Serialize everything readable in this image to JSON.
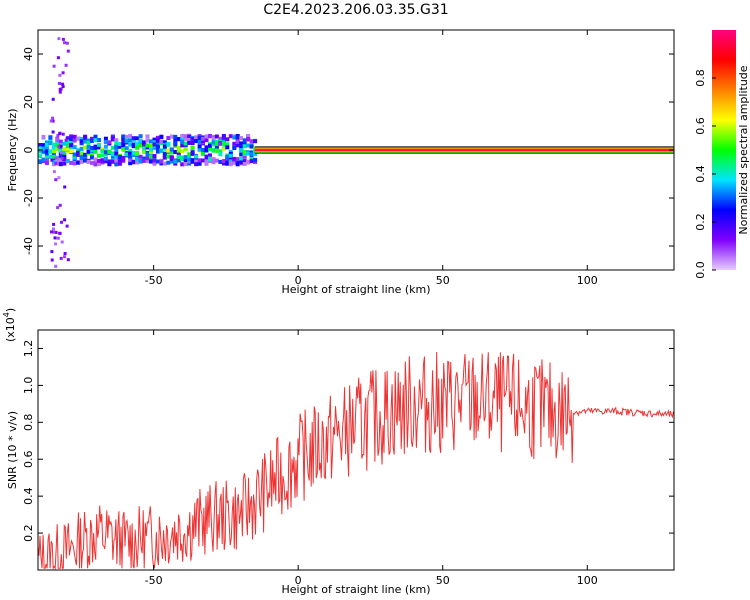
{
  "figure_title": "C2E4.2023.206.03.35.G31",
  "chart_data": [
    {
      "type": "heatmap",
      "title": "C2E4.2023.206.03.35.G31",
      "xlabel": "Height of straight line (km)",
      "ylabel": "Frequency (Hz)",
      "xlim": [
        -90,
        130
      ],
      "ylim": [
        -50,
        50
      ],
      "xticks": [
        -50,
        0,
        50,
        100
      ],
      "yticks": [
        -40,
        -20,
        0,
        20,
        40
      ],
      "colorbar": {
        "label": "Normalized spectral amplitude",
        "range": [
          0,
          1
        ],
        "ticks": [
          0.0,
          0.2,
          0.4,
          0.6,
          0.8
        ],
        "colormap": [
          "#e6ccff",
          "#8000ff",
          "#0000ff",
          "#00e5ff",
          "#00ff00",
          "#ffff00",
          "#ff8000",
          "#ff0000",
          "#ff0080"
        ]
      },
      "features": [
        {
          "x_range": [
            -90,
            -15
          ],
          "freq_center": 0,
          "freq_spread": 6,
          "amplitude": 0.45,
          "description_text": ""
        },
        {
          "x_range": [
            -15,
            130
          ],
          "freq_center": 0,
          "freq_spread": 1,
          "amplitude": 0.95,
          "description_text": ""
        }
      ]
    },
    {
      "type": "line",
      "xlabel": "Height of straight line (km)",
      "ylabel": "SNR (10 * v/v)",
      "y_multiplier_label": "(x10",
      "y_multiplier_exp": "4",
      "y_multiplier_close": ")",
      "xlim": [
        -90,
        130
      ],
      "ylim": [
        0,
        1.3
      ],
      "xticks": [
        -50,
        0,
        50,
        100
      ],
      "yticks": [
        0.2,
        0.4,
        0.6,
        0.8,
        1.0,
        1.2
      ],
      "ytick_labels": [
        "0.2",
        "0.4",
        "0.6",
        "0.8",
        "1.0",
        "1.2"
      ],
      "color": "#ee3333",
      "series": [
        {
          "x": [
            -90,
            -80,
            -70,
            -60,
            -50,
            -40,
            -30,
            -20,
            -10,
            0,
            10,
            20,
            30,
            40,
            50,
            60,
            70,
            80,
            90,
            100,
            110,
            120,
            130
          ],
          "values": [
            0.05,
            0.1,
            0.2,
            0.15,
            0.18,
            0.22,
            0.28,
            0.3,
            0.45,
            0.6,
            0.7,
            0.78,
            0.85,
            0.9,
            0.9,
            0.92,
            0.9,
            0.88,
            0.85,
            0.86,
            0.86,
            0.85,
            0.84
          ]
        }
      ]
    }
  ]
}
